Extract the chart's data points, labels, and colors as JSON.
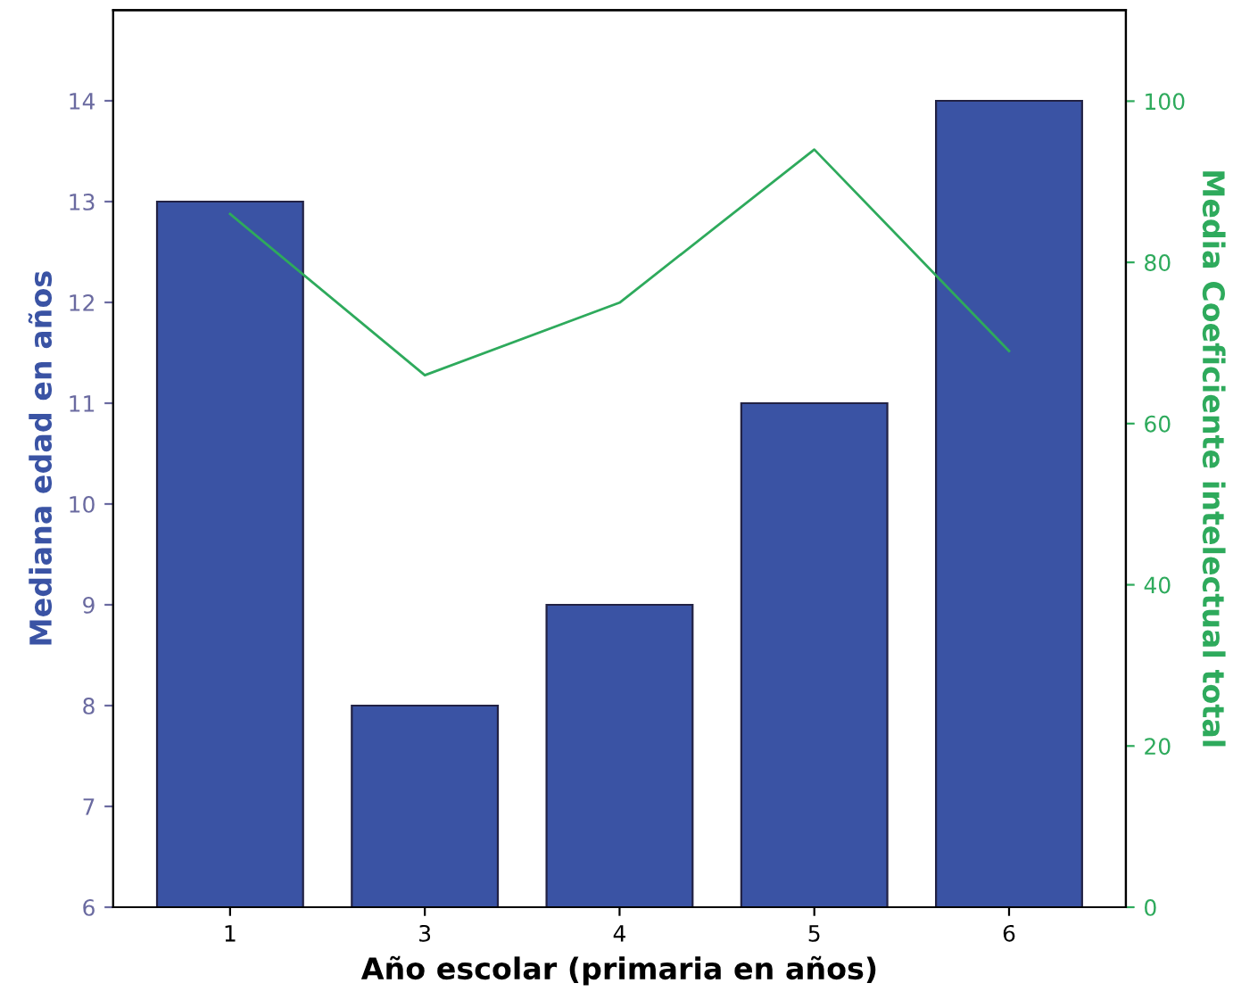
{
  "chart_data": {
    "type": "bar",
    "xlabel": "Año escolar (primaria en años)",
    "ylabel": "Mediana edad en años",
    "y2label": "Media Coeficiente intelectual total",
    "categories": [
      "1",
      "3",
      "4",
      "5",
      "6"
    ],
    "series": [
      {
        "color": "#3a53a4",
        "values": [
          13,
          8,
          9,
          11,
          14
        ]
      },
      {
        "type": "line",
        "axis": "y2",
        "color": "#2eaa5c",
        "values": [
          86,
          66,
          75,
          94,
          69
        ]
      }
    ],
    "ylim": [
      6,
      14.9
    ],
    "yticks": [
      6,
      7,
      8,
      9,
      10,
      11,
      12,
      13,
      14
    ],
    "y2lim": [
      0,
      111.3
    ],
    "y2ticks": [
      0,
      20,
      40,
      60,
      80,
      100
    ],
    "grid": false,
    "legend": false
  }
}
